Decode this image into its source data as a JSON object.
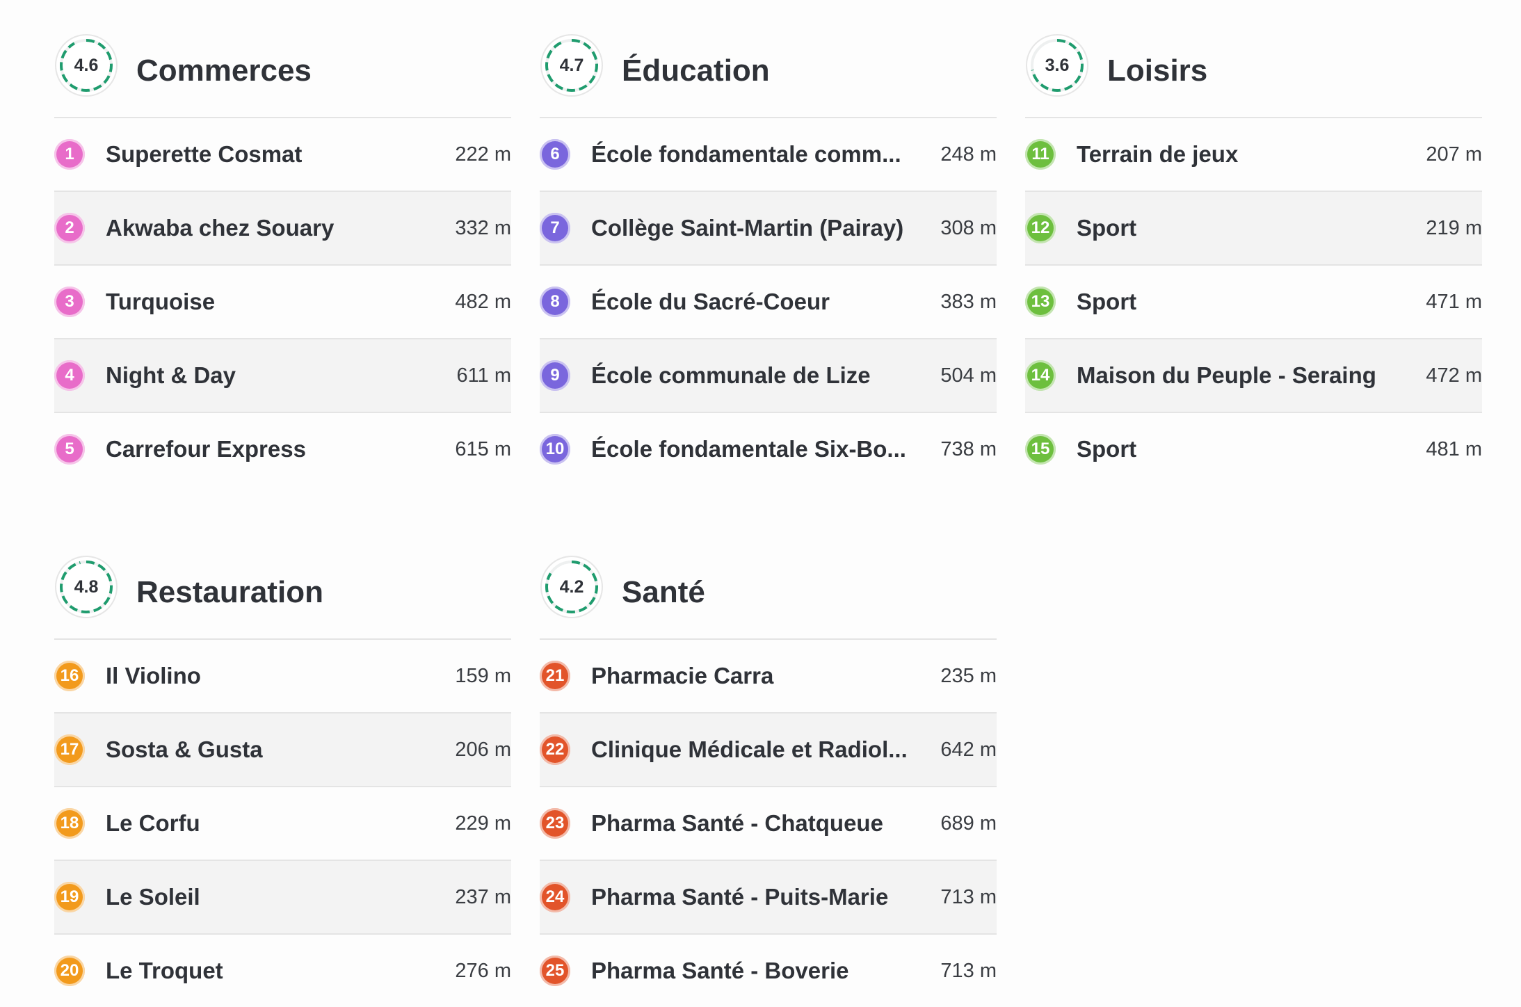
{
  "colors": {
    "commerces": "#e86cc9",
    "education": "#7a66dd",
    "loisirs": "#6dbf3e",
    "restauration": "#f29a1c",
    "sante": "#e2542a",
    "score_ring": "#1f9c6e"
  },
  "categories": [
    {
      "key": "commerces",
      "title": "Commerces",
      "score": "4.6",
      "items": [
        {
          "num": "1",
          "name": "Superette Cosmat",
          "distance": "222 m"
        },
        {
          "num": "2",
          "name": "Akwaba chez Souary",
          "distance": "332 m"
        },
        {
          "num": "3",
          "name": "Turquoise",
          "distance": "482 m"
        },
        {
          "num": "4",
          "name": "Night & Day",
          "distance": "611 m"
        },
        {
          "num": "5",
          "name": "Carrefour Express",
          "distance": "615 m"
        }
      ]
    },
    {
      "key": "education",
      "title": "Éducation",
      "score": "4.7",
      "items": [
        {
          "num": "6",
          "name": "École fondamentale comm...",
          "distance": "248 m"
        },
        {
          "num": "7",
          "name": "Collège Saint-Martin (Pairay)",
          "distance": "308 m"
        },
        {
          "num": "8",
          "name": "École du Sacré-Coeur",
          "distance": "383 m"
        },
        {
          "num": "9",
          "name": "École communale de Lize",
          "distance": "504 m"
        },
        {
          "num": "10",
          "name": "École fondamentale Six-Bo...",
          "distance": "738 m"
        }
      ]
    },
    {
      "key": "loisirs",
      "title": "Loisirs",
      "score": "3.6",
      "items": [
        {
          "num": "11",
          "name": "Terrain de jeux",
          "distance": "207 m"
        },
        {
          "num": "12",
          "name": "Sport",
          "distance": "219 m"
        },
        {
          "num": "13",
          "name": "Sport",
          "distance": "471 m"
        },
        {
          "num": "14",
          "name": "Maison du Peuple - Seraing",
          "distance": "472 m"
        },
        {
          "num": "15",
          "name": "Sport",
          "distance": "481 m"
        }
      ]
    },
    {
      "key": "restauration",
      "title": "Restauration",
      "score": "4.8",
      "items": [
        {
          "num": "16",
          "name": "Il Violino",
          "distance": "159 m"
        },
        {
          "num": "17",
          "name": "Sosta & Gusta",
          "distance": "206 m"
        },
        {
          "num": "18",
          "name": "Le Corfu",
          "distance": "229 m"
        },
        {
          "num": "19",
          "name": "Le Soleil",
          "distance": "237 m"
        },
        {
          "num": "20",
          "name": "Le Troquet",
          "distance": "276 m"
        }
      ]
    },
    {
      "key": "sante",
      "title": "Santé",
      "score": "4.2",
      "items": [
        {
          "num": "21",
          "name": "Pharmacie Carra",
          "distance": "235 m"
        },
        {
          "num": "22",
          "name": "Clinique Médicale et Radiol...",
          "distance": "642 m"
        },
        {
          "num": "23",
          "name": "Pharma Santé - Chatqueue",
          "distance": "689 m"
        },
        {
          "num": "24",
          "name": "Pharma Santé - Puits-Marie",
          "distance": "713 m"
        },
        {
          "num": "25",
          "name": "Pharma Santé - Boverie",
          "distance": "713 m"
        }
      ]
    }
  ]
}
